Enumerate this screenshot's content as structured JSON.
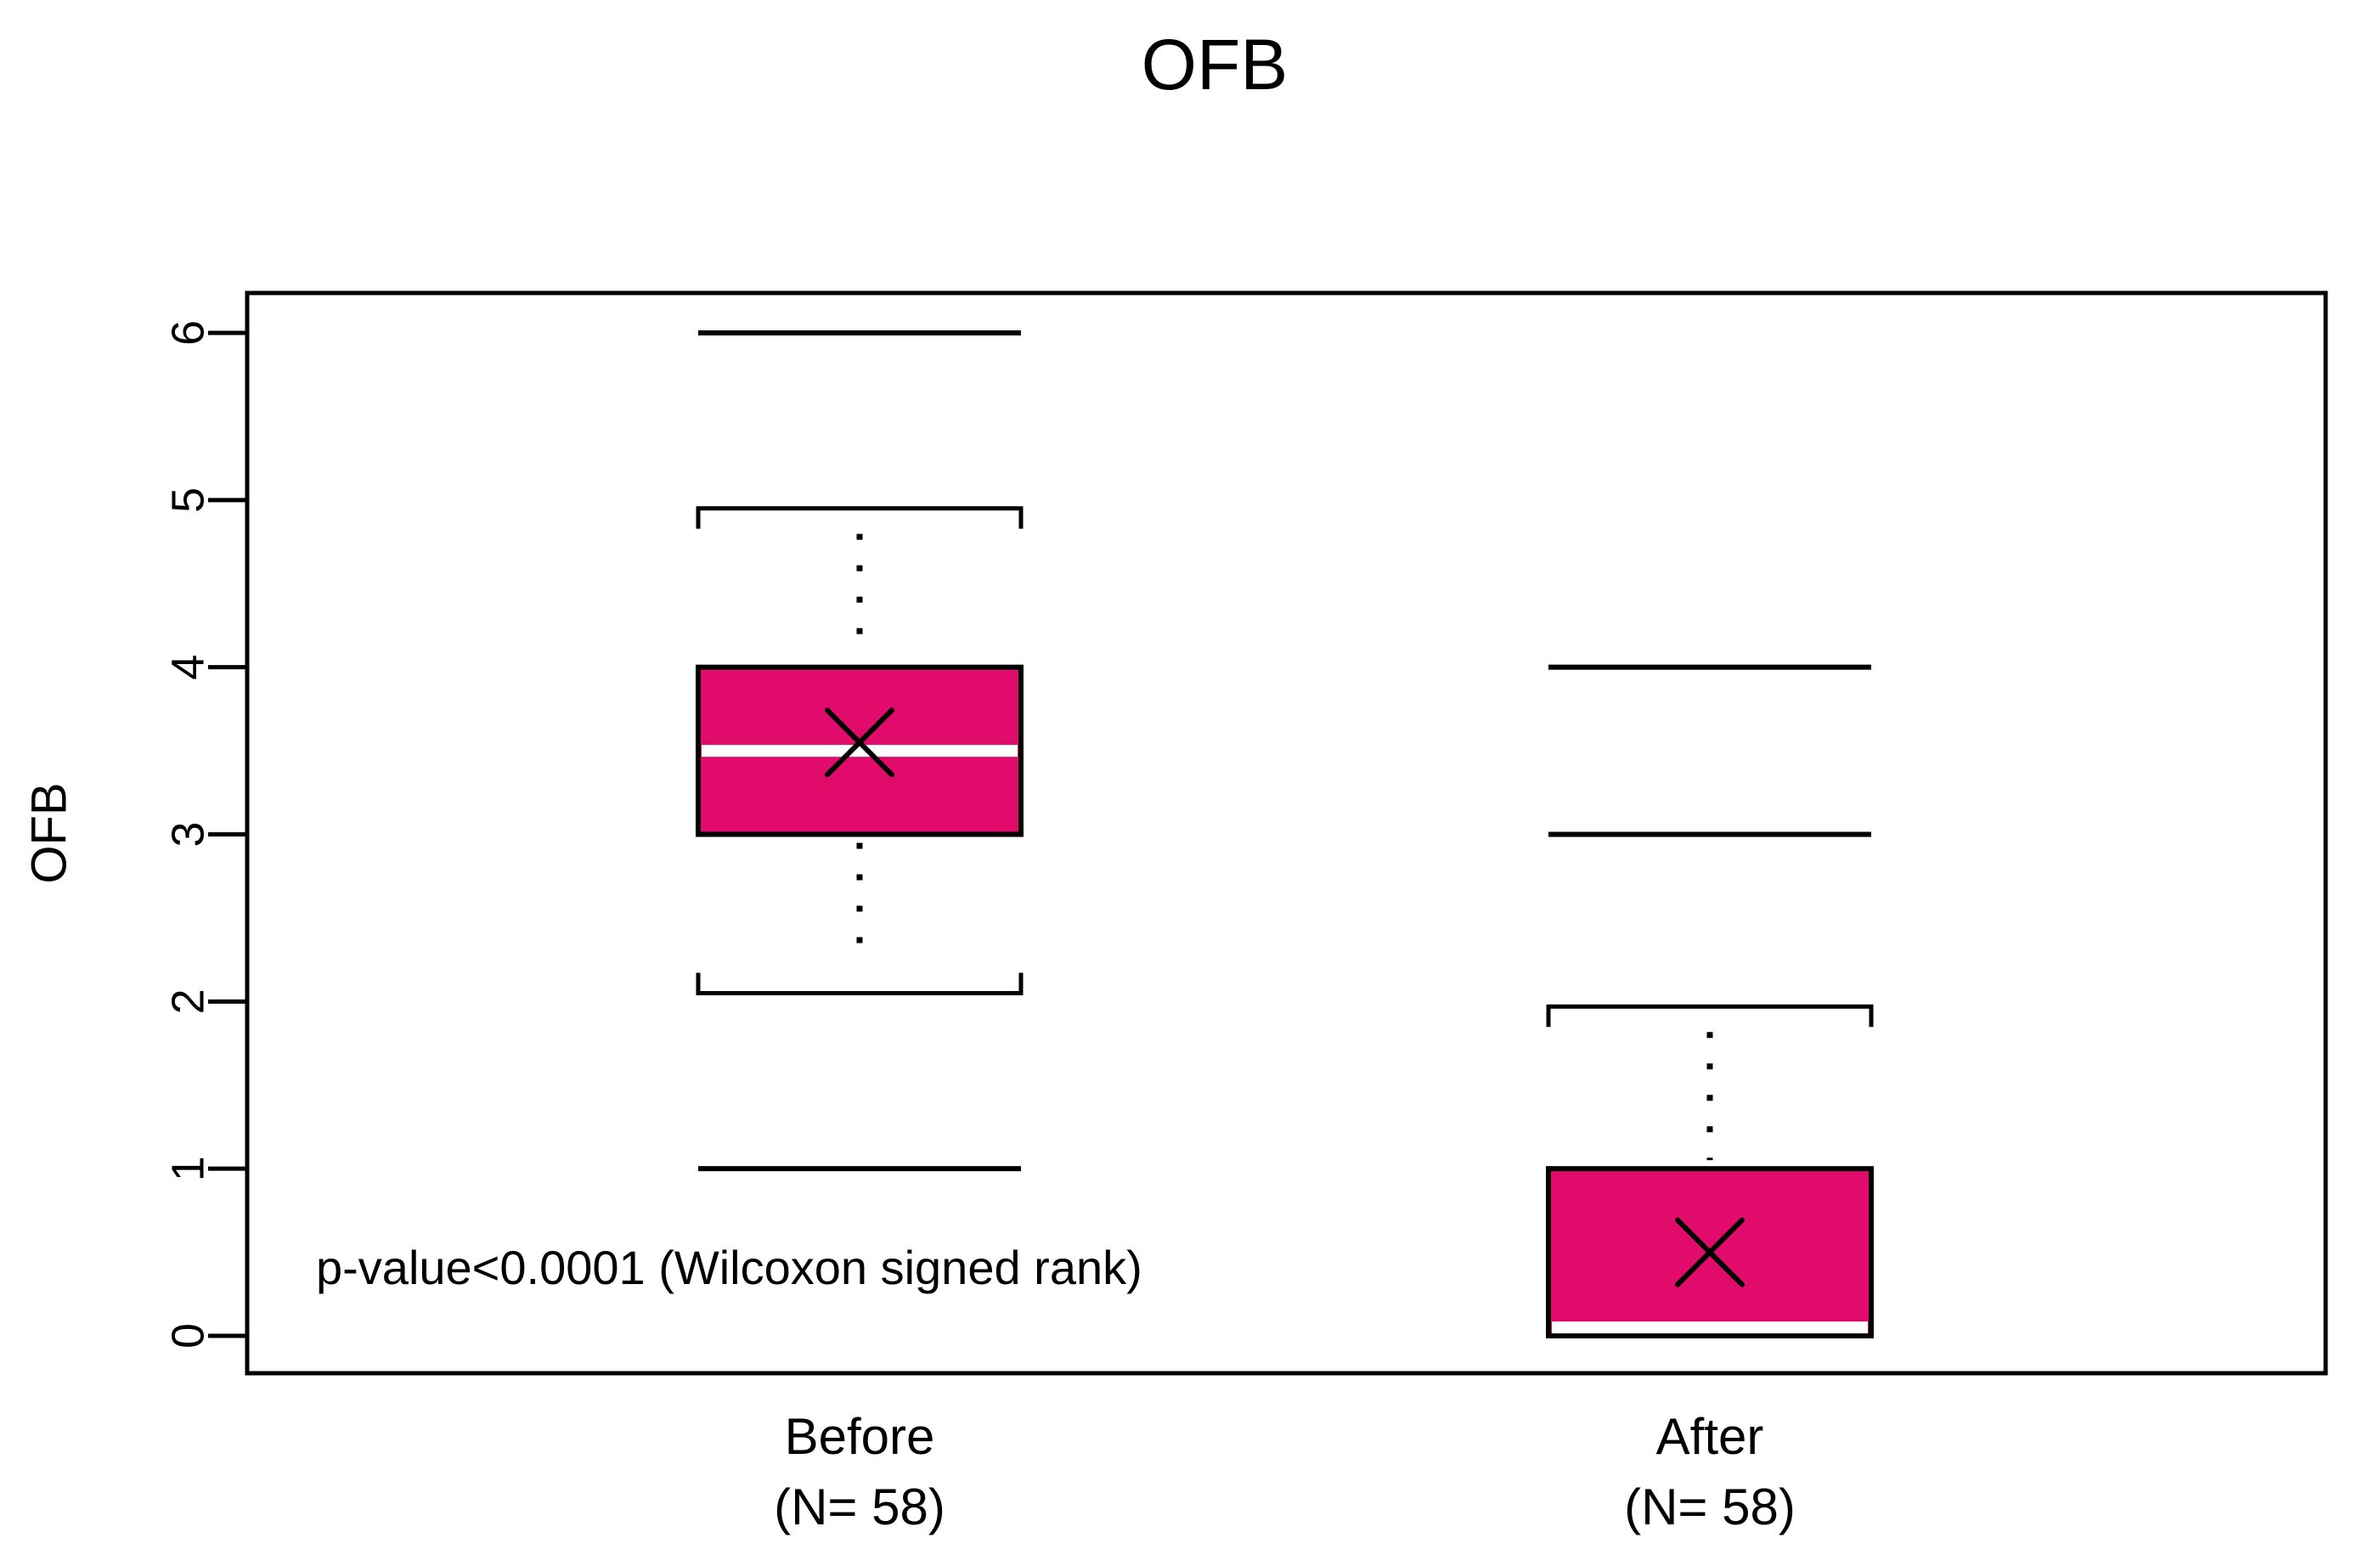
{
  "chart_data": {
    "type": "boxplot",
    "title": "OFB",
    "ylabel": "OFB",
    "xlabel": "",
    "ylim": [
      0,
      6
    ],
    "yticks": [
      0,
      1,
      2,
      3,
      4,
      5,
      6
    ],
    "grid": false,
    "legend": "none",
    "annotation": "p-value<0.0001 (Wilcoxon signed rank)",
    "groups": [
      {
        "label": "Before",
        "sublabel": "(N= 58)",
        "n": 58,
        "q1": 3,
        "q3": 4,
        "median": 3.5,
        "mean": 3.55,
        "whisker_low": 2.05,
        "whisker_high": 4.95,
        "outlier_lines": [
          1,
          6
        ]
      },
      {
        "label": "After",
        "sublabel": "(N= 58)",
        "n": 58,
        "q1": 0,
        "q3": 1,
        "median": 0.05,
        "mean": 0.5,
        "whisker_low": null,
        "whisker_high": 1.97,
        "outlier_lines": [
          3,
          4
        ]
      }
    ],
    "colors": {
      "box_fill": "#e00b6a",
      "median_line": "#ffffff",
      "stroke": "#000000",
      "background": "#ffffff"
    }
  }
}
